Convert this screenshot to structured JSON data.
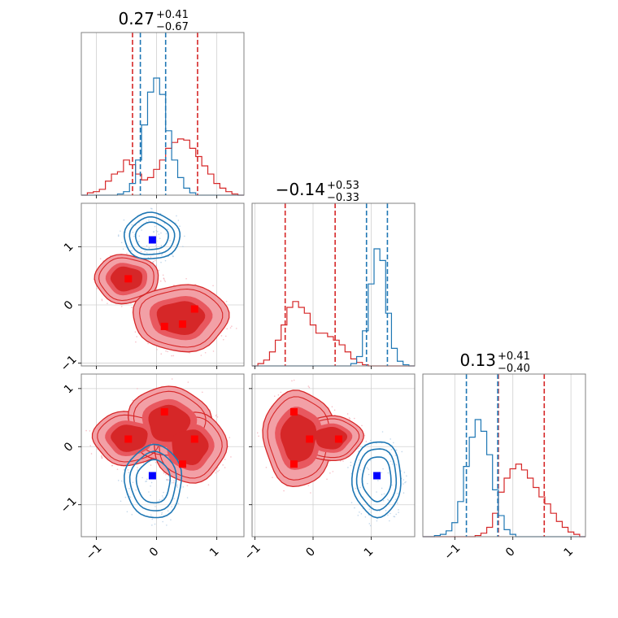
{
  "chart_data": [
    {
      "type": "histogram",
      "panel": "hist-param1",
      "title": {
        "main": "0.27",
        "upper": "+0.41",
        "lower": "−0.67"
      },
      "xlim": [
        -1.25,
        1.45
      ],
      "xticks": [
        -1,
        0,
        1
      ],
      "ylim": [
        0,
        1
      ],
      "series": [
        {
          "color": "#d62728",
          "x": [
            -1.2,
            -1.1,
            -1.0,
            -0.9,
            -0.8,
            -0.7,
            -0.6,
            -0.5,
            -0.4,
            -0.3,
            -0.2,
            -0.1,
            0.0,
            0.1,
            0.2,
            0.3,
            0.4,
            0.5,
            0.6,
            0.7,
            0.8,
            0.9,
            1.0,
            1.1,
            1.2,
            1.3,
            1.4
          ],
          "y": [
            0.0,
            0.02,
            0.03,
            0.05,
            0.12,
            0.18,
            0.2,
            0.3,
            0.26,
            0.18,
            0.13,
            0.15,
            0.22,
            0.3,
            0.4,
            0.45,
            0.48,
            0.47,
            0.4,
            0.33,
            0.25,
            0.18,
            0.1,
            0.06,
            0.03,
            0.01,
            0.0
          ],
          "vlines": [
            -0.4,
            0.68
          ]
        },
        {
          "color": "#1f77b4",
          "x": [
            -1.2,
            -1.1,
            -1.0,
            -0.9,
            -0.8,
            -0.7,
            -0.6,
            -0.5,
            -0.4,
            -0.3,
            -0.2,
            -0.1,
            0.0,
            0.1,
            0.2,
            0.3,
            0.4,
            0.5,
            0.6,
            0.7,
            0.8,
            0.9,
            1.0,
            1.1,
            1.2,
            1.3,
            1.4
          ],
          "y": [
            0.0,
            0.0,
            0.0,
            0.0,
            0.0,
            0.0,
            0.01,
            0.03,
            0.1,
            0.3,
            0.6,
            0.88,
            1.0,
            0.86,
            0.55,
            0.3,
            0.15,
            0.06,
            0.02,
            0.0,
            0.0,
            0.0,
            0.0,
            0.0,
            0.0,
            0.0,
            0.0
          ],
          "vlines": [
            -0.27,
            0.15
          ]
        }
      ]
    },
    {
      "type": "histogram",
      "panel": "hist-param2",
      "title": {
        "main": "−0.14",
        "upper": "+0.53",
        "lower": "−0.33"
      },
      "xlim": [
        -1.05,
        1.75
      ],
      "xticks": [
        -1,
        0,
        1
      ],
      "ylim": [
        0,
        1
      ],
      "series": [
        {
          "color": "#d62728",
          "x": [
            -1.0,
            -0.9,
            -0.8,
            -0.7,
            -0.6,
            -0.5,
            -0.4,
            -0.3,
            -0.2,
            -0.1,
            0.0,
            0.1,
            0.2,
            0.3,
            0.4,
            0.5,
            0.6,
            0.7,
            0.8,
            0.9,
            1.0,
            1.1,
            1.2,
            1.3,
            1.4,
            1.5,
            1.6,
            1.7
          ],
          "y": [
            0.0,
            0.02,
            0.05,
            0.12,
            0.22,
            0.35,
            0.5,
            0.55,
            0.5,
            0.45,
            0.35,
            0.28,
            0.28,
            0.25,
            0.22,
            0.18,
            0.12,
            0.06,
            0.03,
            0.01,
            0.0,
            0.0,
            0.0,
            0.0,
            0.0,
            0.0,
            0.0,
            0.0
          ],
          "vlines": [
            -0.48,
            0.38
          ]
        },
        {
          "color": "#1f77b4",
          "x": [
            -1.0,
            -0.9,
            -0.8,
            -0.7,
            -0.6,
            -0.5,
            -0.4,
            -0.3,
            -0.2,
            -0.1,
            0.0,
            0.1,
            0.2,
            0.3,
            0.4,
            0.5,
            0.6,
            0.7,
            0.8,
            0.9,
            1.0,
            1.1,
            1.2,
            1.3,
            1.4,
            1.5,
            1.6,
            1.7
          ],
          "y": [
            0.0,
            0.0,
            0.0,
            0.0,
            0.0,
            0.0,
            0.0,
            0.0,
            0.0,
            0.0,
            0.0,
            0.0,
            0.0,
            0.0,
            0.0,
            0.0,
            0.0,
            0.02,
            0.08,
            0.3,
            0.7,
            1.0,
            0.9,
            0.45,
            0.15,
            0.04,
            0.01,
            0.0
          ],
          "vlines": [
            0.92,
            1.28
          ]
        }
      ]
    },
    {
      "type": "histogram",
      "panel": "hist-param3",
      "title": {
        "main": "0.13",
        "upper": "+0.41",
        "lower": "−0.40"
      },
      "xlim": [
        -1.55,
        1.25
      ],
      "xticks": [
        -1,
        0,
        1
      ],
      "ylim": [
        0,
        1
      ],
      "series": [
        {
          "color": "#d62728",
          "x": [
            -1.5,
            -1.4,
            -1.3,
            -1.2,
            -1.1,
            -1.0,
            -0.9,
            -0.8,
            -0.7,
            -0.6,
            -0.5,
            -0.4,
            -0.3,
            -0.2,
            -0.1,
            0.0,
            0.1,
            0.2,
            0.3,
            0.4,
            0.5,
            0.6,
            0.7,
            0.8,
            0.9,
            1.0,
            1.1,
            1.2
          ],
          "y": [
            0.0,
            0.0,
            0.0,
            0.0,
            0.0,
            0.0,
            0.0,
            0.0,
            0.0,
            0.01,
            0.03,
            0.08,
            0.2,
            0.38,
            0.5,
            0.58,
            0.62,
            0.57,
            0.5,
            0.42,
            0.34,
            0.28,
            0.2,
            0.13,
            0.08,
            0.04,
            0.02,
            0.0
          ],
          "vlines": [
            -0.25,
            0.54
          ]
        },
        {
          "color": "#1f77b4",
          "x": [
            -1.5,
            -1.4,
            -1.3,
            -1.2,
            -1.1,
            -1.0,
            -0.9,
            -0.8,
            -0.7,
            -0.6,
            -0.5,
            -0.4,
            -0.3,
            -0.2,
            -0.1,
            0.0,
            0.1,
            0.2,
            0.3,
            0.4,
            0.5,
            0.6,
            0.7,
            0.8,
            0.9,
            1.0,
            1.1,
            1.2
          ],
          "y": [
            0.0,
            0.0,
            0.01,
            0.02,
            0.05,
            0.12,
            0.3,
            0.6,
            0.85,
            1.0,
            0.9,
            0.7,
            0.4,
            0.18,
            0.06,
            0.02,
            0.0,
            0.0,
            0.0,
            0.0,
            0.0,
            0.0,
            0.0,
            0.0,
            0.0,
            0.0,
            0.0,
            0.0
          ],
          "vlines": [
            -0.8,
            -0.26
          ]
        }
      ]
    },
    {
      "type": "scatter",
      "panel": "corner-2v1",
      "xlim": [
        -1.25,
        1.45
      ],
      "ylim": [
        -1.05,
        1.75
      ],
      "xticks": [
        -1,
        0,
        1
      ],
      "yticks": [
        -1,
        0,
        1
      ],
      "red_markers": [
        {
          "x": -0.47,
          "y": 0.45
        },
        {
          "x": 0.63,
          "y": -0.07
        },
        {
          "x": 0.13,
          "y": -0.37
        },
        {
          "x": 0.43,
          "y": -0.33
        }
      ],
      "blue_markers": [
        {
          "x": -0.07,
          "y": 1.12
        }
      ],
      "red_blobs": [
        {
          "cx": -0.5,
          "cy": 0.45,
          "rx": 0.48,
          "ry": 0.38
        },
        {
          "cx": 0.4,
          "cy": -0.22,
          "rx": 0.72,
          "ry": 0.52
        }
      ],
      "blue_blobs": [
        {
          "cx": -0.08,
          "cy": 1.18,
          "rx": 0.44,
          "ry": 0.38
        }
      ]
    },
    {
      "type": "scatter",
      "panel": "corner-3v1",
      "xlim": [
        -1.25,
        1.45
      ],
      "ylim": [
        -1.55,
        1.25
      ],
      "xticks": [
        -1,
        0,
        1
      ],
      "yticks": [
        -1,
        0,
        1
      ],
      "red_markers": [
        {
          "x": -0.47,
          "y": 0.13
        },
        {
          "x": 0.13,
          "y": 0.6
        },
        {
          "x": 0.63,
          "y": 0.13
        },
        {
          "x": 0.43,
          "y": -0.3
        }
      ],
      "blue_markers": [
        {
          "x": -0.07,
          "y": -0.5
        }
      ],
      "red_blobs": [
        {
          "cx": -0.45,
          "cy": 0.15,
          "rx": 0.55,
          "ry": 0.42
        },
        {
          "cx": 0.2,
          "cy": 0.4,
          "rx": 0.62,
          "ry": 0.58
        },
        {
          "cx": 0.55,
          "cy": 0.0,
          "rx": 0.55,
          "ry": 0.55
        }
      ],
      "blue_blobs": [
        {
          "cx": -0.05,
          "cy": -0.6,
          "rx": 0.45,
          "ry": 0.6
        }
      ]
    },
    {
      "type": "scatter",
      "panel": "corner-3v2",
      "xlim": [
        -1.05,
        1.75
      ],
      "ylim": [
        -1.55,
        1.25
      ],
      "xticks": [
        -1,
        0,
        1
      ],
      "yticks": [
        -1,
        0,
        1
      ],
      "red_markers": [
        {
          "x": -0.33,
          "y": 0.6
        },
        {
          "x": -0.06,
          "y": 0.13
        },
        {
          "x": 0.44,
          "y": 0.13
        },
        {
          "x": -0.33,
          "y": -0.3
        }
      ],
      "blue_markers": [
        {
          "x": 1.1,
          "y": -0.5
        }
      ],
      "red_blobs": [
        {
          "cx": -0.25,
          "cy": 0.15,
          "rx": 0.55,
          "ry": 0.75
        },
        {
          "cx": 0.3,
          "cy": 0.15,
          "rx": 0.5,
          "ry": 0.35
        }
      ],
      "blue_blobs": [
        {
          "cx": 1.1,
          "cy": -0.55,
          "rx": 0.4,
          "ry": 0.62
        }
      ]
    }
  ]
}
